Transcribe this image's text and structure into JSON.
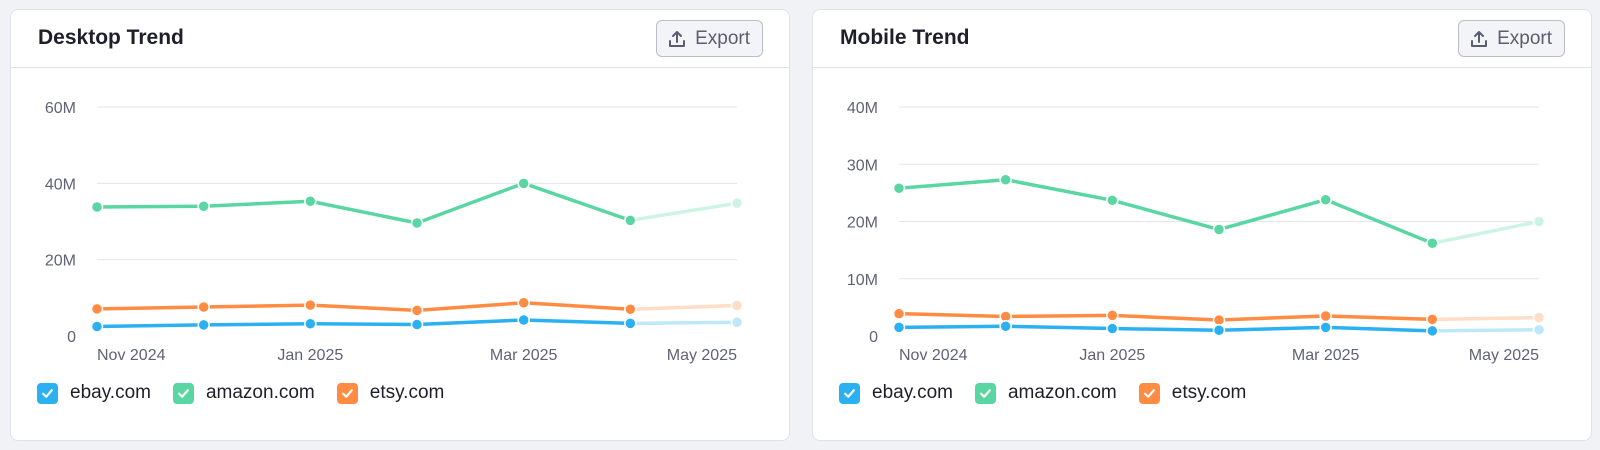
{
  "export_label": "Export",
  "legend": [
    {
      "label": "ebay.com",
      "color": "#2bb0f2"
    },
    {
      "label": "amazon.com",
      "color": "#59d6a2"
    },
    {
      "label": "etsy.com",
      "color": "#ff8c42"
    }
  ],
  "chart_data": [
    {
      "type": "line",
      "title": "Desktop Trend",
      "x": [
        "2024-11",
        "2024-12",
        "2025-01",
        "2025-02",
        "2025-03",
        "2025-04",
        "2025-05"
      ],
      "xtick_labels": [
        "Nov 2024",
        "Jan 2025",
        "Mar 2025",
        "May 2025"
      ],
      "ytick_labels": [
        "60M",
        "40M",
        "20M",
        "0"
      ],
      "ylim": [
        0,
        60000000
      ],
      "grid": true,
      "legend_position": "bottom-left",
      "projected_last_point": true,
      "series": [
        {
          "name": "amazon.com",
          "color": "#59d6a2",
          "values": [
            33800000,
            34000000,
            35300000,
            29600000,
            40000000,
            30300000,
            34800000
          ]
        },
        {
          "name": "etsy.com",
          "color": "#ff8c42",
          "values": [
            7100000,
            7600000,
            8100000,
            6700000,
            8700000,
            7000000,
            8000000
          ]
        },
        {
          "name": "ebay.com",
          "color": "#2bb0f2",
          "values": [
            2500000,
            2900000,
            3200000,
            3000000,
            4200000,
            3300000,
            3600000
          ]
        }
      ]
    },
    {
      "type": "line",
      "title": "Mobile Trend",
      "x": [
        "2024-11",
        "2024-12",
        "2025-01",
        "2025-02",
        "2025-03",
        "2025-04",
        "2025-05"
      ],
      "xtick_labels": [
        "Nov 2024",
        "Jan 2025",
        "Mar 2025",
        "May 2025"
      ],
      "ytick_labels": [
        "40M",
        "30M",
        "20M",
        "10M",
        "0"
      ],
      "ylim": [
        0,
        40000000
      ],
      "grid": true,
      "legend_position": "bottom-left",
      "projected_last_point": true,
      "series": [
        {
          "name": "amazon.com",
          "color": "#59d6a2",
          "values": [
            25800000,
            27300000,
            23700000,
            18600000,
            23800000,
            16200000,
            20000000
          ]
        },
        {
          "name": "etsy.com",
          "color": "#ff8c42",
          "values": [
            3900000,
            3400000,
            3600000,
            2800000,
            3500000,
            2900000,
            3200000
          ]
        },
        {
          "name": "ebay.com",
          "color": "#2bb0f2",
          "values": [
            1500000,
            1700000,
            1300000,
            1000000,
            1500000,
            900000,
            1100000
          ]
        }
      ]
    }
  ]
}
